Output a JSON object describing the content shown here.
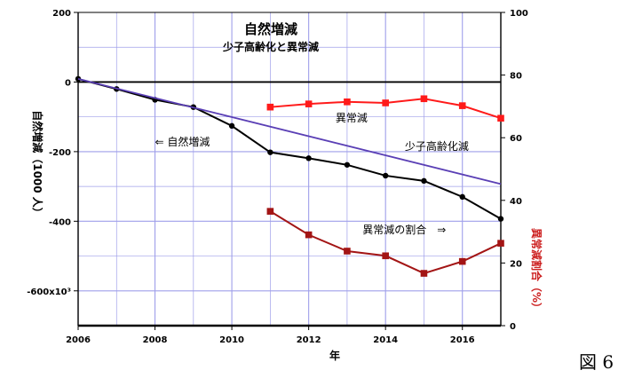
{
  "figure_label": "図 6",
  "chart_data": {
    "type": "line",
    "title": "自然増減",
    "subtitle": "少子高齢化と異常減",
    "xlabel": "年",
    "ylabel_left": "自然増減（1000 人）",
    "ylabel_right": "異常減割合（%）",
    "xlim": [
      2006,
      2017
    ],
    "ylim_left": [
      -700,
      200
    ],
    "ylim_right": [
      0,
      100
    ],
    "x_ticks": [
      "2006",
      "2008",
      "2010",
      "2012",
      "2014",
      "2016"
    ],
    "y_left_ticks": [
      "200",
      "0",
      "-200",
      "-400",
      "-600x10³"
    ],
    "y_right_ticks": [
      "100",
      "80",
      "60",
      "40",
      "20",
      "0"
    ],
    "grid": true,
    "series": [
      {
        "name": "自然増減",
        "axis": "left",
        "color": "#000000",
        "marker": "circle",
        "x": [
          2006,
          2007,
          2008,
          2009,
          2010,
          2011,
          2012,
          2013,
          2014,
          2015,
          2016,
          2017
        ],
        "values": [
          9,
          -20,
          -51,
          -72,
          -126,
          -202,
          -219,
          -238,
          -269,
          -284,
          -330,
          -393
        ]
      },
      {
        "name": "少子高齢化減",
        "axis": "left",
        "color": "#5a3fb5",
        "marker": "none",
        "x": [
          2006,
          2017
        ],
        "values": [
          9,
          -293
        ]
      },
      {
        "name": "異常減",
        "axis": "left",
        "color": "#ff1a1a",
        "marker": "square",
        "x": [
          2011,
          2012,
          2013,
          2014,
          2015,
          2016,
          2017
        ],
        "values": [
          -72,
          -63,
          -57,
          -60,
          -48,
          -68,
          -104
        ]
      },
      {
        "name": "異常減の割合",
        "axis": "right",
        "color": "#a31515",
        "marker": "square",
        "x": [
          2011,
          2012,
          2013,
          2014,
          2015,
          2016,
          2017
        ],
        "values": [
          36.5,
          29,
          23.8,
          22.3,
          16.7,
          20.5,
          26.3
        ]
      }
    ],
    "annotations": [
      {
        "text": "⇐ 自然増減",
        "x": 2008,
        "y": -183,
        "axis": "left"
      },
      {
        "text": "少子高齢化減",
        "x": 2014.5,
        "y": -195,
        "axis": "left"
      },
      {
        "text": "異常減",
        "x": 2012.7,
        "y": -113,
        "axis": "left"
      },
      {
        "text": "異常減の割合　⇒",
        "x": 2013.4,
        "y": -435,
        "axis": "left"
      }
    ]
  }
}
